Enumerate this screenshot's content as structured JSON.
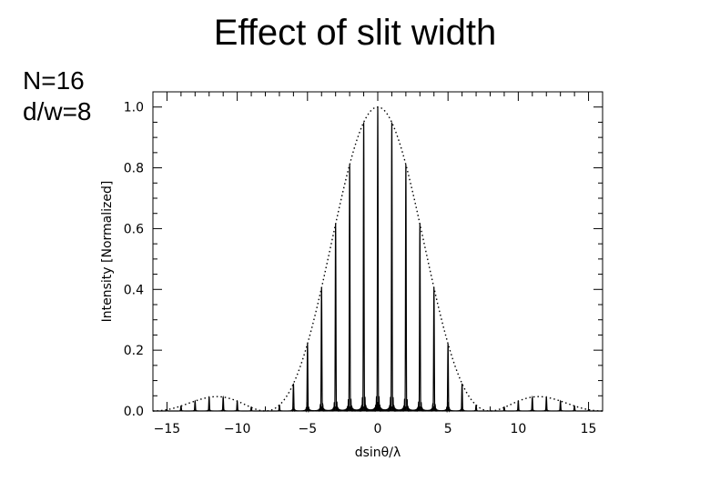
{
  "slide": {
    "title": "Effect of slit width",
    "params": [
      "N=16",
      "d/w=8"
    ]
  },
  "chart_data": {
    "type": "line",
    "title": "",
    "xlabel": "dsinθ/λ",
    "ylabel": "Intensity [Normalized]",
    "xlim": [
      -16,
      16
    ],
    "ylim": [
      0,
      1.05
    ],
    "x_ticks": [
      -15,
      -10,
      -5,
      0,
      5,
      10,
      15
    ],
    "y_ticks": [
      0.0,
      0.2,
      0.4,
      0.6,
      0.8,
      1.0
    ],
    "x_tick_labels": [
      "−15",
      "−10",
      "−5",
      "0",
      "5",
      "10",
      "15"
    ],
    "y_tick_labels": [
      "0.0",
      "0.2",
      "0.4",
      "0.6",
      "0.8",
      "1.0"
    ],
    "grid": false,
    "model": {
      "N": 16,
      "d_over_w": 8
    },
    "series": [
      {
        "style": "solid",
        "description_points": {
          "x": [
            -15,
            -14,
            -13,
            -12,
            -11,
            -10,
            -9,
            -8,
            -7,
            -6,
            -5,
            -4,
            -3,
            -2,
            -1,
            0,
            1,
            2,
            3,
            4,
            5,
            6,
            7,
            8,
            9,
            10,
            11,
            12,
            13,
            14,
            15
          ],
          "y": [
            0.03,
            0.02,
            0.04,
            0.04,
            0.05,
            0.04,
            0.03,
            0.0,
            0.04,
            0.11,
            0.22,
            0.41,
            0.62,
            0.81,
            0.95,
            1.0,
            0.95,
            0.81,
            0.62,
            0.41,
            0.22,
            0.11,
            0.04,
            0.0,
            0.03,
            0.04,
            0.05,
            0.04,
            0.04,
            0.02,
            0.03
          ]
        }
      },
      {
        "style": "dotted",
        "description_points": {
          "x": [
            -16,
            -12,
            -8,
            -6,
            -4,
            -2,
            0,
            2,
            4,
            6,
            8,
            12,
            16
          ],
          "y": [
            0.0,
            0.047,
            0.0,
            0.1,
            0.41,
            0.81,
            1.0,
            0.81,
            0.41,
            0.1,
            0.0,
            0.047,
            0.0
          ]
        }
      }
    ],
    "colors": {
      "line": "#000000",
      "background": "#ffffff"
    }
  }
}
